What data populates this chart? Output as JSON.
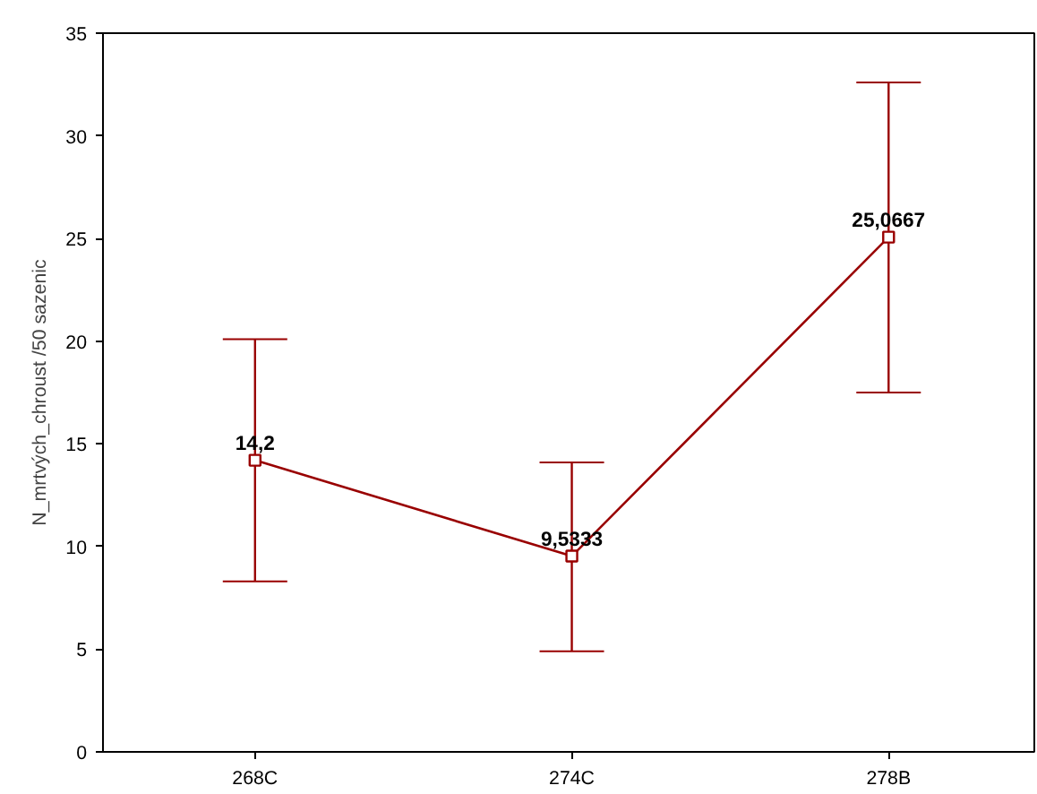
{
  "chart_data": {
    "type": "line",
    "ylabel": "N_mrtvých_chroust /50 sazenic",
    "categories": [
      "268C",
      "274C",
      "278B"
    ],
    "values": [
      14.2,
      9.5333,
      25.0667
    ],
    "value_labels": [
      "14,2",
      "9,5333",
      "25,0667"
    ],
    "errors": [
      [
        8.3,
        20.1
      ],
      [
        4.9,
        14.1
      ],
      [
        17.5,
        32.6
      ]
    ],
    "color": "#990000",
    "marker": "square",
    "line_style": "solid",
    "ylim": [
      0,
      35
    ],
    "yticks": [
      0,
      5,
      10,
      15,
      20,
      25,
      30,
      35
    ],
    "grid": false
  }
}
